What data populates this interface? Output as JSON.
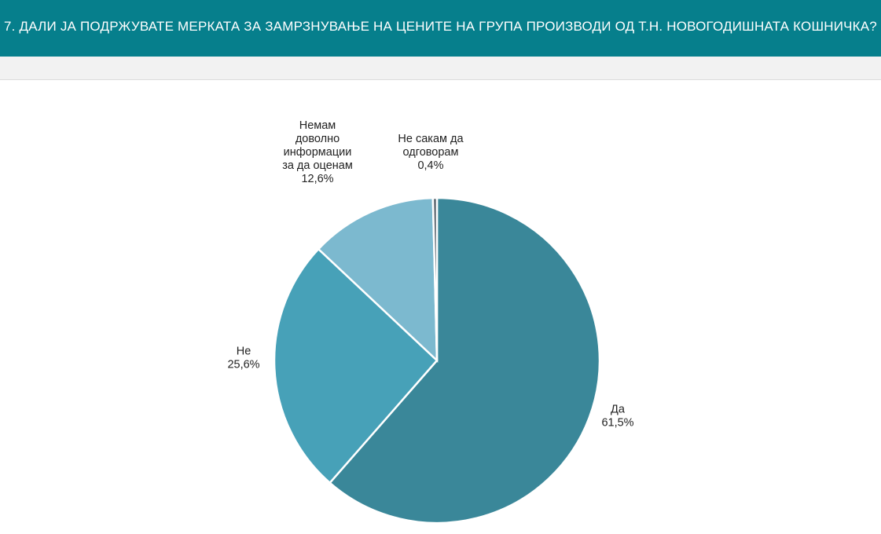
{
  "header": {
    "title": "7. ДАЛИ ЈА ПОДРЖУВАТЕ МЕРКАТА ЗА ЗАМРЗНУВАЊЕ НА ЦЕНИТЕ НА ГРУПА ПРОИЗВОДИ ОД Т.Н. НОВОГОДИШНАТА КОШНИЧКА?"
  },
  "chart_data": {
    "type": "pie",
    "title": "7. ДАЛИ ЈА ПОДРЖУВАТЕ МЕРКАТА ЗА ЗАМРЗНУВАЊЕ НА ЦЕНИТЕ НА ГРУПА ПРОИЗВОДИ ОД Т.Н. НОВОГОДИШНАТА КОШНИЧКА?",
    "legend": "none",
    "slices": [
      {
        "label": "Да",
        "label_lines": [
          "Да"
        ],
        "value": 61.5,
        "display": "61,5%",
        "color": "#3a8799"
      },
      {
        "label": "Не",
        "label_lines": [
          "Не"
        ],
        "value": 25.6,
        "display": "25,6%",
        "color": "#47a1b8"
      },
      {
        "label": "Немам доволно информации за да оценам",
        "label_lines": [
          "Немам",
          "доволно",
          "информации",
          "за да оценам"
        ],
        "value": 12.6,
        "display": "12,6%",
        "color": "#7cb9cf"
      },
      {
        "label": "Не сакам да одговорам",
        "label_lines": [
          "Не сакам да",
          "одговорам"
        ],
        "value": 0.4,
        "display": "0,4%",
        "color": "#5c6770"
      }
    ]
  }
}
